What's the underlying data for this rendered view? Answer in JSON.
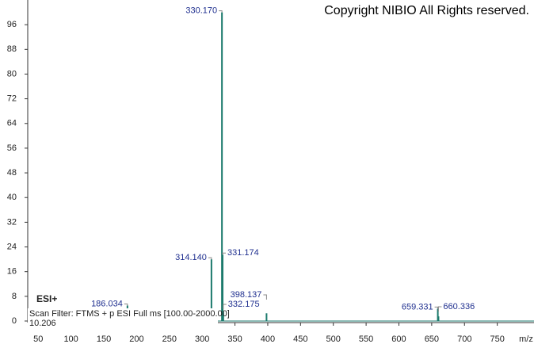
{
  "chart_data": {
    "type": "stem",
    "copyright": "Copyright NIBIO All Rights reserved.",
    "ionization": "ESI+",
    "scan_filter": "Scan Filter: FTMS + p ESI Full ms [100.00-2000.00]",
    "retention_time": "10.206",
    "xlabel": "m/z",
    "color": "#1b7a6c",
    "label_color": "#1f2f8f",
    "x": [
      186.034,
      314.14,
      330.17,
      331.174,
      332.175,
      398.137,
      659.331,
      660.336
    ],
    "values": [
      5,
      20,
      100,
      21.5,
      3,
      2.5,
      4,
      1.5
    ],
    "value_labels": [
      "186.034",
      "314.140",
      "330.170",
      "331.174",
      "332.175",
      "398.137",
      "659.331",
      "660.336"
    ],
    "xlim": [
      34,
      806
    ],
    "ylim": [
      0,
      104
    ],
    "xticks": [
      50,
      100,
      150,
      200,
      250,
      300,
      350,
      400,
      450,
      500,
      550,
      600,
      650,
      700,
      750
    ],
    "yticks": [
      0,
      8,
      16,
      24,
      32,
      40,
      48,
      56,
      64,
      72,
      80,
      88,
      96
    ],
    "grid": false
  }
}
